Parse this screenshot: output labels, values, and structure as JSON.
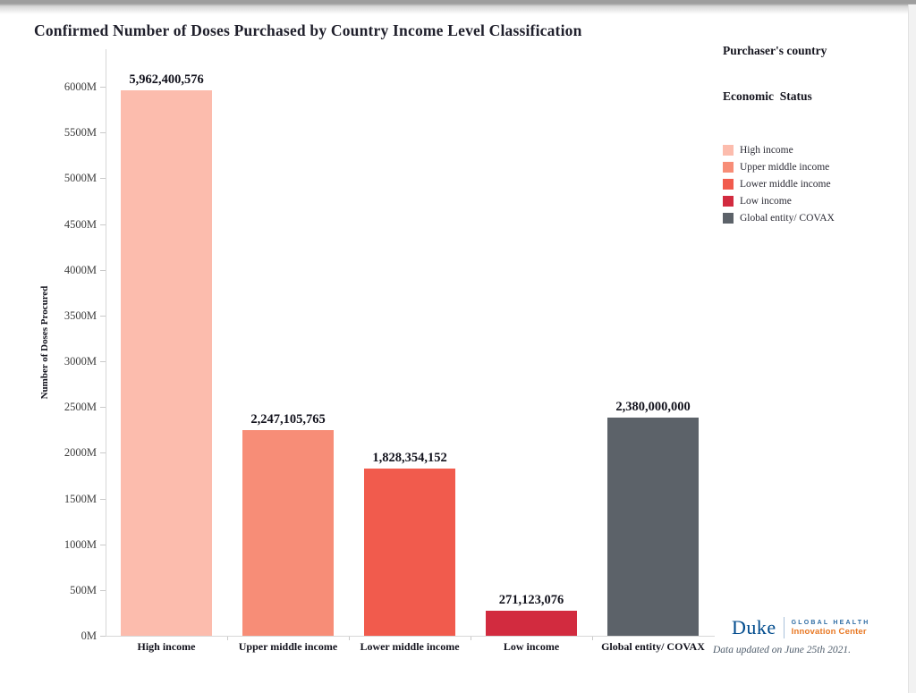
{
  "page": {
    "title": "Confirmed Number of Doses Purchased by Country Income Level Classification"
  },
  "chart_data": {
    "type": "bar",
    "title": "Confirmed Number of Doses Purchased by Country Income Level Classification",
    "ylabel": "Number of Doses Procured",
    "xlabel": "",
    "categories": [
      "High income",
      "Upper middle income",
      "Lower middle income",
      "Low income",
      "Global entity/ COVAX"
    ],
    "values": [
      5962400576,
      2247105765,
      1828354152,
      271123076,
      2380000000
    ],
    "value_labels": [
      "5,962,400,576",
      "2,247,105,765",
      "1,828,354,152",
      "271,123,076",
      "2,380,000,000"
    ],
    "bar_colors": [
      "#FCBCAD",
      "#F78D77",
      "#F15B4D",
      "#D22B3F",
      "#5C6269"
    ],
    "ytick_values_m": [
      0,
      500,
      1000,
      1500,
      2000,
      2500,
      3000,
      3500,
      4000,
      4500,
      5000,
      5500,
      6000
    ],
    "ytick_labels": [
      "0M",
      "500M",
      "1000M",
      "1500M",
      "2000M",
      "2500M",
      "3000M",
      "3500M",
      "4000M",
      "4500M",
      "5000M",
      "5500M",
      "6000M"
    ],
    "ylim_m": [
      0,
      6410
    ],
    "grid": false,
    "legend_position": "top-right"
  },
  "legend": {
    "title_line1": "Purchaser's country",
    "title_line2": "Economic  Status",
    "items": [
      {
        "label": "High income",
        "color": "#FCBCAD"
      },
      {
        "label": "Upper middle income",
        "color": "#F78D77"
      },
      {
        "label": "Lower middle income",
        "color": "#F15B4D"
      },
      {
        "label": "Low income",
        "color": "#D22B3F"
      },
      {
        "label": "Global entity/ COVAX",
        "color": "#5C6269"
      }
    ]
  },
  "footer": {
    "logo": {
      "duke": "Duke",
      "line1": "GLOBAL HEALTH",
      "line2": "Innovation Center"
    },
    "updated": "Data updated on June 25th 2021."
  }
}
